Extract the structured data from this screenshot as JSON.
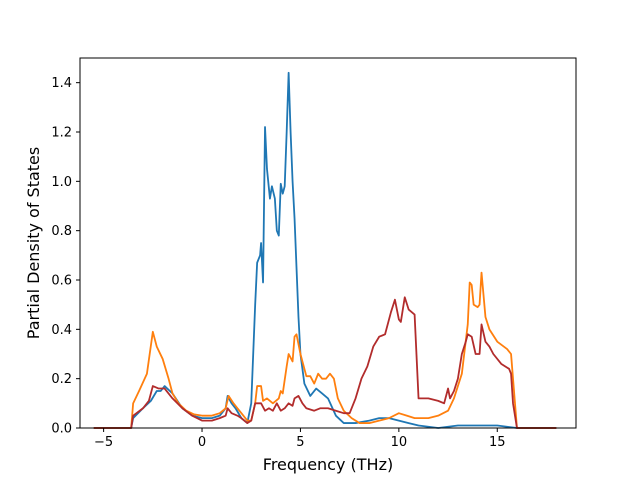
{
  "chart_data": {
    "type": "line",
    "title": "",
    "xlabel": "Frequency (THz)",
    "ylabel": "Partial Density of States",
    "xlim": [
      -6.2,
      19.0
    ],
    "ylim": [
      0.0,
      1.5
    ],
    "xticks": [
      -5,
      0,
      5,
      10,
      15
    ],
    "yticks": [
      0.0,
      0.2,
      0.4,
      0.6,
      0.8,
      1.0,
      1.2,
      1.4
    ],
    "xtick_labels": [
      "−5",
      "0",
      "5",
      "10",
      "15"
    ],
    "ytick_labels": [
      "0.0",
      "0.2",
      "0.4",
      "0.6",
      "0.8",
      "1.0",
      "1.2",
      "1.4"
    ],
    "grid": false,
    "legend": "none",
    "series": [
      {
        "color": "#1f77b4",
        "points": [
          [
            -5.5,
            0
          ],
          [
            -3.6,
            0
          ],
          [
            -3.5,
            0.04
          ],
          [
            -3.0,
            0.08
          ],
          [
            -2.6,
            0.11
          ],
          [
            -2.3,
            0.15
          ],
          [
            -2.1,
            0.15
          ],
          [
            -1.9,
            0.17
          ],
          [
            -1.5,
            0.14
          ],
          [
            -1.0,
            0.08
          ],
          [
            -0.5,
            0.05
          ],
          [
            0,
            0.04
          ],
          [
            0.5,
            0.04
          ],
          [
            0.9,
            0.05
          ],
          [
            1.2,
            0.08
          ],
          [
            1.3,
            0.13
          ],
          [
            1.5,
            0.1
          ],
          [
            1.7,
            0.08
          ],
          [
            2.0,
            0.04
          ],
          [
            2.3,
            0.02
          ],
          [
            2.5,
            0.1
          ],
          [
            2.7,
            0.5
          ],
          [
            2.8,
            0.67
          ],
          [
            2.95,
            0.7
          ],
          [
            3.0,
            0.75
          ],
          [
            3.1,
            0.59
          ],
          [
            3.2,
            1.22
          ],
          [
            3.3,
            1.05
          ],
          [
            3.45,
            0.93
          ],
          [
            3.55,
            0.98
          ],
          [
            3.7,
            0.93
          ],
          [
            3.8,
            0.8
          ],
          [
            3.9,
            0.78
          ],
          [
            4.0,
            0.99
          ],
          [
            4.1,
            0.95
          ],
          [
            4.2,
            0.98
          ],
          [
            4.3,
            1.2
          ],
          [
            4.4,
            1.44
          ],
          [
            4.5,
            1.2
          ],
          [
            4.6,
            1.0
          ],
          [
            4.7,
            0.85
          ],
          [
            4.8,
            0.65
          ],
          [
            4.9,
            0.45
          ],
          [
            5.0,
            0.3
          ],
          [
            5.2,
            0.18
          ],
          [
            5.5,
            0.13
          ],
          [
            5.8,
            0.16
          ],
          [
            6.1,
            0.14
          ],
          [
            6.4,
            0.12
          ],
          [
            6.8,
            0.05
          ],
          [
            7.2,
            0.02
          ],
          [
            7.8,
            0.02
          ],
          [
            8.5,
            0.03
          ],
          [
            9.0,
            0.04
          ],
          [
            9.5,
            0.04
          ],
          [
            10.0,
            0.03
          ],
          [
            10.5,
            0.02
          ],
          [
            11.0,
            0.01
          ],
          [
            12.0,
            0.0
          ],
          [
            13.0,
            0.01
          ],
          [
            14.0,
            0.01
          ],
          [
            15.0,
            0.01
          ],
          [
            16.0,
            0.0
          ],
          [
            18.0,
            0
          ]
        ]
      },
      {
        "color": "#ff7f0e",
        "points": [
          [
            -5.5,
            0
          ],
          [
            -3.6,
            0
          ],
          [
            -3.5,
            0.1
          ],
          [
            -3.2,
            0.15
          ],
          [
            -2.8,
            0.22
          ],
          [
            -2.5,
            0.39
          ],
          [
            -2.3,
            0.33
          ],
          [
            -2.0,
            0.28
          ],
          [
            -1.7,
            0.2
          ],
          [
            -1.5,
            0.14
          ],
          [
            -1.2,
            0.1
          ],
          [
            -0.8,
            0.07
          ],
          [
            -0.4,
            0.055
          ],
          [
            0,
            0.05
          ],
          [
            0.5,
            0.05
          ],
          [
            0.9,
            0.06
          ],
          [
            1.2,
            0.08
          ],
          [
            1.35,
            0.13
          ],
          [
            1.6,
            0.1
          ],
          [
            1.8,
            0.08
          ],
          [
            2.0,
            0.06
          ],
          [
            2.3,
            0.03
          ],
          [
            2.5,
            0.03
          ],
          [
            2.7,
            0.1
          ],
          [
            2.8,
            0.17
          ],
          [
            3.0,
            0.17
          ],
          [
            3.1,
            0.11
          ],
          [
            3.3,
            0.12
          ],
          [
            3.6,
            0.1
          ],
          [
            3.9,
            0.12
          ],
          [
            4.0,
            0.15
          ],
          [
            4.1,
            0.14
          ],
          [
            4.3,
            0.25
          ],
          [
            4.4,
            0.3
          ],
          [
            4.6,
            0.27
          ],
          [
            4.7,
            0.37
          ],
          [
            4.8,
            0.38
          ],
          [
            5.0,
            0.3
          ],
          [
            5.3,
            0.21
          ],
          [
            5.5,
            0.21
          ],
          [
            5.7,
            0.18
          ],
          [
            5.9,
            0.22
          ],
          [
            6.1,
            0.2
          ],
          [
            6.3,
            0.2
          ],
          [
            6.5,
            0.22
          ],
          [
            6.7,
            0.2
          ],
          [
            6.9,
            0.12
          ],
          [
            7.2,
            0.07
          ],
          [
            7.6,
            0.04
          ],
          [
            8.0,
            0.02
          ],
          [
            8.5,
            0.02
          ],
          [
            9.0,
            0.03
          ],
          [
            9.5,
            0.04
          ],
          [
            10.0,
            0.06
          ],
          [
            10.4,
            0.05
          ],
          [
            10.8,
            0.04
          ],
          [
            11.5,
            0.04
          ],
          [
            12.0,
            0.05
          ],
          [
            12.5,
            0.07
          ],
          [
            12.8,
            0.12
          ],
          [
            13.2,
            0.22
          ],
          [
            13.5,
            0.42
          ],
          [
            13.6,
            0.59
          ],
          [
            13.7,
            0.58
          ],
          [
            13.8,
            0.5
          ],
          [
            14.0,
            0.49
          ],
          [
            14.1,
            0.5
          ],
          [
            14.2,
            0.63
          ],
          [
            14.4,
            0.45
          ],
          [
            14.6,
            0.4
          ],
          [
            15.0,
            0.35
          ],
          [
            15.5,
            0.32
          ],
          [
            15.7,
            0.3
          ],
          [
            15.9,
            0.1
          ],
          [
            16.0,
            0
          ],
          [
            18.0,
            0
          ]
        ]
      },
      {
        "color": "#b22c2c",
        "points": [
          [
            -5.5,
            0
          ],
          [
            -3.6,
            0
          ],
          [
            -3.5,
            0.05
          ],
          [
            -3.0,
            0.08
          ],
          [
            -2.7,
            0.11
          ],
          [
            -2.5,
            0.17
          ],
          [
            -2.2,
            0.16
          ],
          [
            -1.9,
            0.16
          ],
          [
            -1.5,
            0.12
          ],
          [
            -1.0,
            0.08
          ],
          [
            -0.5,
            0.05
          ],
          [
            0,
            0.03
          ],
          [
            0.5,
            0.03
          ],
          [
            0.9,
            0.04
          ],
          [
            1.2,
            0.05
          ],
          [
            1.3,
            0.08
          ],
          [
            1.5,
            0.06
          ],
          [
            1.8,
            0.05
          ],
          [
            2.0,
            0.04
          ],
          [
            2.3,
            0.02
          ],
          [
            2.5,
            0.03
          ],
          [
            2.7,
            0.1
          ],
          [
            3.0,
            0.1
          ],
          [
            3.2,
            0.07
          ],
          [
            3.4,
            0.08
          ],
          [
            3.6,
            0.07
          ],
          [
            3.8,
            0.1
          ],
          [
            4.0,
            0.07
          ],
          [
            4.2,
            0.08
          ],
          [
            4.4,
            0.1
          ],
          [
            4.6,
            0.09
          ],
          [
            4.7,
            0.12
          ],
          [
            4.9,
            0.13
          ],
          [
            5.1,
            0.1
          ],
          [
            5.3,
            0.08
          ],
          [
            5.7,
            0.07
          ],
          [
            6.0,
            0.08
          ],
          [
            6.4,
            0.08
          ],
          [
            6.8,
            0.07
          ],
          [
            7.2,
            0.06
          ],
          [
            7.5,
            0.06
          ],
          [
            7.8,
            0.12
          ],
          [
            8.1,
            0.2
          ],
          [
            8.4,
            0.25
          ],
          [
            8.7,
            0.33
          ],
          [
            9.0,
            0.37
          ],
          [
            9.3,
            0.38
          ],
          [
            9.6,
            0.47
          ],
          [
            9.8,
            0.52
          ],
          [
            10.0,
            0.44
          ],
          [
            10.1,
            0.43
          ],
          [
            10.3,
            0.53
          ],
          [
            10.5,
            0.48
          ],
          [
            10.8,
            0.46
          ],
          [
            11.0,
            0.12
          ],
          [
            11.5,
            0.12
          ],
          [
            12.0,
            0.11
          ],
          [
            12.3,
            0.1
          ],
          [
            12.5,
            0.16
          ],
          [
            12.6,
            0.12
          ],
          [
            12.8,
            0.15
          ],
          [
            13.0,
            0.2
          ],
          [
            13.2,
            0.3
          ],
          [
            13.4,
            0.35
          ],
          [
            13.5,
            0.38
          ],
          [
            13.7,
            0.37
          ],
          [
            13.9,
            0.3
          ],
          [
            14.1,
            0.3
          ],
          [
            14.2,
            0.42
          ],
          [
            14.4,
            0.35
          ],
          [
            14.6,
            0.33
          ],
          [
            14.8,
            0.3
          ],
          [
            15.2,
            0.26
          ],
          [
            15.6,
            0.24
          ],
          [
            15.7,
            0.22
          ],
          [
            15.8,
            0.1
          ],
          [
            16.0,
            0
          ],
          [
            18.0,
            0
          ]
        ]
      }
    ]
  }
}
